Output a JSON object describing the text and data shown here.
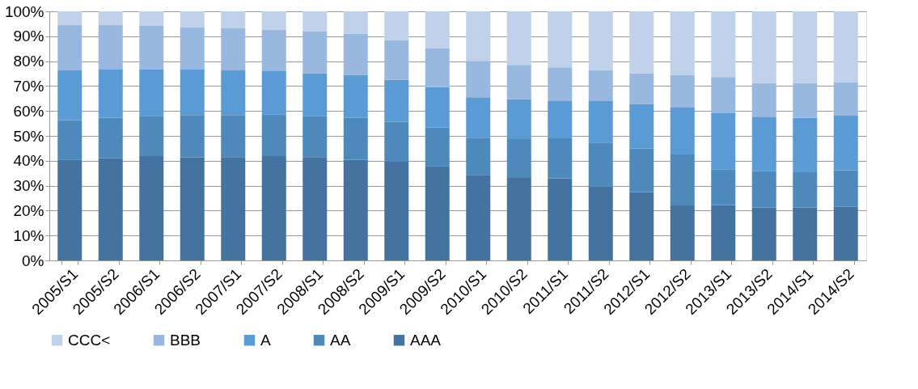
{
  "chart_data": {
    "type": "bar",
    "stacked": true,
    "categories": [
      "2005/S1",
      "2005/S2",
      "2006/S1",
      "2006/S2",
      "2007/S1",
      "2007/S2",
      "2008/S1",
      "2008/S2",
      "2009/S1",
      "2009/S2",
      "2010/S1",
      "2010/S2",
      "2011/S1",
      "2011/S2",
      "2012/S1",
      "2012/S2",
      "2013/S1",
      "2013/S2",
      "2014/S1",
      "2014/S2"
    ],
    "series": [
      {
        "name": "AAA",
        "color": "#44739f",
        "values": [
          40.5,
          41.0,
          41.9,
          41.4,
          41.5,
          41.9,
          41.5,
          40.4,
          39.6,
          37.9,
          34.3,
          33.1,
          32.9,
          29.6,
          27.4,
          22.1,
          22.2,
          21.2,
          21.2,
          21.5
        ]
      },
      {
        "name": "AA",
        "color": "#4e89bc",
        "values": [
          15.8,
          16.3,
          16.1,
          17.0,
          16.9,
          16.8,
          16.4,
          16.8,
          16.0,
          15.4,
          15.0,
          15.6,
          16.1,
          17.7,
          17.6,
          20.4,
          14.4,
          14.6,
          14.2,
          14.7
        ]
      },
      {
        "name": "A",
        "color": "#5b9bd5",
        "values": [
          20.0,
          19.3,
          18.8,
          18.2,
          17.9,
          17.5,
          17.3,
          17.3,
          16.9,
          16.3,
          16.2,
          16.0,
          15.0,
          16.7,
          17.8,
          18.9,
          22.5,
          21.7,
          21.8,
          21.9
        ]
      },
      {
        "name": "BBB",
        "color": "#98b8df",
        "values": [
          18.2,
          17.9,
          17.4,
          17.0,
          16.9,
          16.4,
          16.7,
          16.6,
          16.0,
          15.6,
          14.6,
          13.8,
          13.5,
          12.5,
          12.3,
          13.1,
          14.5,
          13.8,
          14.1,
          13.5
        ]
      },
      {
        "name": "CCC<",
        "color": "#bfd2ea",
        "values": [
          5.5,
          5.5,
          5.8,
          6.4,
          6.8,
          7.4,
          8.1,
          8.9,
          11.5,
          14.8,
          19.9,
          21.5,
          22.5,
          23.5,
          24.9,
          25.5,
          26.4,
          28.7,
          28.7,
          28.4
        ]
      }
    ],
    "ylim": [
      0,
      100
    ],
    "yticks": [
      {
        "value": 0,
        "label": "0%"
      },
      {
        "value": 10,
        "label": "10%"
      },
      {
        "value": 20,
        "label": "20%"
      },
      {
        "value": 30,
        "label": "30%"
      },
      {
        "value": 40,
        "label": "40%"
      },
      {
        "value": 50,
        "label": "50%"
      },
      {
        "value": 60,
        "label": "60%"
      },
      {
        "value": 70,
        "label": "70%"
      },
      {
        "value": 80,
        "label": "80%"
      },
      {
        "value": 90,
        "label": "90%"
      },
      {
        "value": 100,
        "label": "100%"
      }
    ],
    "grid": "y",
    "legend": "bottom"
  }
}
